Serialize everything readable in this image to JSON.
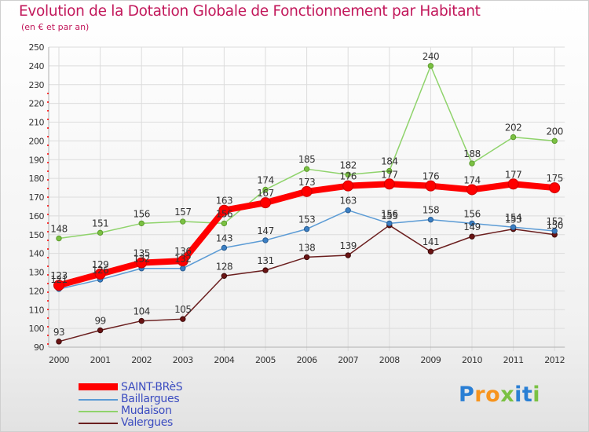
{
  "title": "Evolution de la Dotation Globale de Fonctionnement par Habitant",
  "subtitle": "(en € et par an)",
  "brand": {
    "letters": [
      "P",
      "r",
      "o",
      "x",
      "i",
      "t",
      "i"
    ],
    "colors": [
      "#2a7fd4",
      "#f7941d",
      "#f7941d",
      "#7ac143",
      "#2a7fd4",
      "#2a7fd4",
      "#7ac143"
    ]
  },
  "chart_data": {
    "type": "line",
    "title": "Evolution de la Dotation Globale de Fonctionnement par Habitant",
    "ylabel": "(en € et par an)",
    "xlabel": "",
    "ylim": [
      90,
      250
    ],
    "yticks": [
      90,
      100,
      110,
      120,
      130,
      140,
      150,
      160,
      170,
      180,
      190,
      200,
      210,
      220,
      230,
      240,
      250
    ],
    "categories": [
      "2000",
      "2001",
      "2002",
      "2003",
      "2004",
      "2005",
      "2006",
      "2007",
      "2008",
      "2009",
      "2010",
      "2011",
      "2012"
    ],
    "grid": true,
    "series": [
      {
        "name": "Valergues",
        "color": "#6b1f1f",
        "values": [
          93,
          99,
          104,
          105,
          128,
          131,
          138,
          139,
          155,
          141,
          149,
          153,
          150
        ]
      },
      {
        "name": "Mudaison",
        "color": "#8fd36b",
        "values": [
          148,
          151,
          156,
          157,
          156,
          174,
          185,
          182,
          184,
          240,
          188,
          202,
          200
        ]
      },
      {
        "name": "Baillargues",
        "color": "#5b9bd5",
        "values": [
          121,
          126,
          132,
          132,
          143,
          147,
          153,
          163,
          156,
          158,
          156,
          154,
          152
        ]
      },
      {
        "name": "SAINT-BRèS",
        "color": "#ff0000",
        "values": [
          123,
          129,
          135,
          136,
          163,
          167,
          173,
          176,
          177,
          176,
          174,
          177,
          175
        ]
      }
    ],
    "legend_order": [
      "SAINT-BRèS",
      "Baillargues",
      "Mudaison",
      "Valergues"
    ]
  }
}
